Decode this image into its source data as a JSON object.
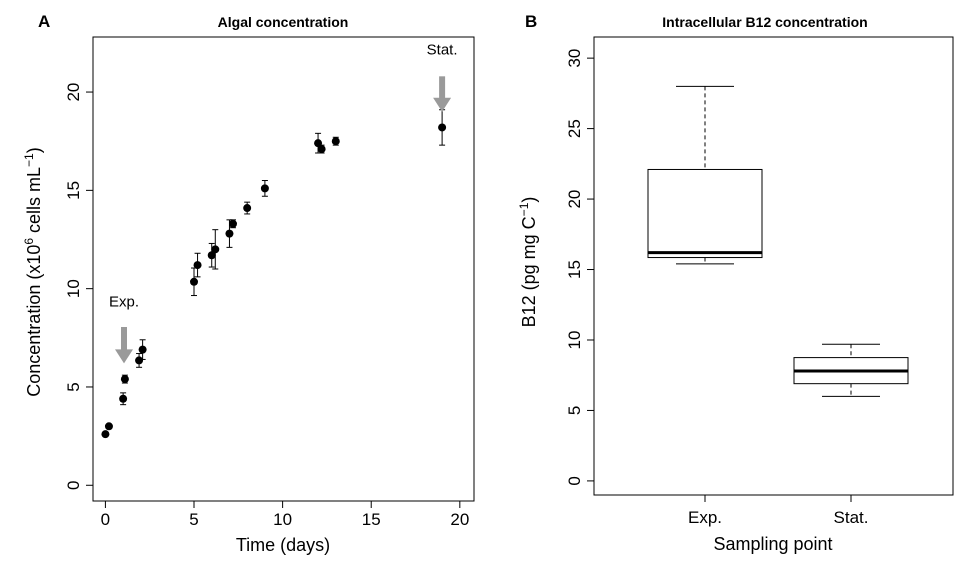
{
  "chart_data": [
    {
      "type": "scatter",
      "panel_label": "A",
      "title": "Algal concentration",
      "xlabel": "Time (days)",
      "ylabel": {
        "pre": "Concentration (x10",
        "sup1": "6",
        "mid": " cells mL",
        "sup2": "−1",
        "post": ")"
      },
      "xlim": [
        -0.7,
        20.8
      ],
      "ylim": [
        -0.8,
        22.8
      ],
      "xticks": [
        0,
        5,
        10,
        15,
        20
      ],
      "yticks": [
        0,
        5,
        10,
        15,
        20
      ],
      "grid": false,
      "points": [
        {
          "x": 0.0,
          "y": 2.6,
          "err": 0.1
        },
        {
          "x": 0.2,
          "y": 3.0,
          "err": 0.1
        },
        {
          "x": 1.0,
          "y": 4.4,
          "err": 0.3
        },
        {
          "x": 1.1,
          "y": 5.4,
          "err": 0.2
        },
        {
          "x": 1.9,
          "y": 6.35,
          "err": 0.35
        },
        {
          "x": 2.1,
          "y": 6.9,
          "err": 0.5
        },
        {
          "x": 5.0,
          "y": 10.35,
          "err": 0.7
        },
        {
          "x": 5.2,
          "y": 11.2,
          "err": 0.6
        },
        {
          "x": 6.0,
          "y": 11.7,
          "err": 0.6
        },
        {
          "x": 6.2,
          "y": 12.0,
          "err": 1.0
        },
        {
          "x": 7.0,
          "y": 12.8,
          "err": 0.7
        },
        {
          "x": 7.2,
          "y": 13.3,
          "err": 0.2
        },
        {
          "x": 8.0,
          "y": 14.1,
          "err": 0.3
        },
        {
          "x": 9.0,
          "y": 15.1,
          "err": 0.4
        },
        {
          "x": 12.0,
          "y": 17.4,
          "err": 0.5
        },
        {
          "x": 12.2,
          "y": 17.1,
          "err": 0.2
        },
        {
          "x": 13.0,
          "y": 17.5,
          "err": 0.2
        },
        {
          "x": 19.0,
          "y": 18.2,
          "err": 0.9
        }
      ],
      "annotations": [
        {
          "text": "Exp.",
          "x": 1.05,
          "y_text": 9.1,
          "arrow_top": 8.05,
          "arrow_bottom": 6.2
        },
        {
          "text": "Stat.",
          "x": 19.0,
          "y_text": 21.9,
          "arrow_top": 20.8,
          "arrow_bottom": 19.0
        }
      ],
      "colors": {
        "points": "#000000",
        "arrow": "#9a9a9a"
      }
    },
    {
      "type": "box",
      "panel_label": "B",
      "title": "Intracellular B12 concentration",
      "xlabel": "Sampling point",
      "ylabel": {
        "pre": "B12 (pg mg C",
        "sup": "−1",
        "post": ")"
      },
      "ylim": [
        -1.0,
        31.5
      ],
      "yticks": [
        0,
        5,
        10,
        15,
        20,
        25,
        30
      ],
      "grid": false,
      "categories": [
        "Exp.",
        "Stat."
      ],
      "boxes": [
        {
          "min": 15.4,
          "q1": 15.85,
          "median": 16.2,
          "q3": 22.1,
          "max": 28.0
        },
        {
          "min": 6.0,
          "q1": 6.9,
          "median": 7.8,
          "q3": 8.75,
          "max": 9.7
        }
      ]
    }
  ]
}
